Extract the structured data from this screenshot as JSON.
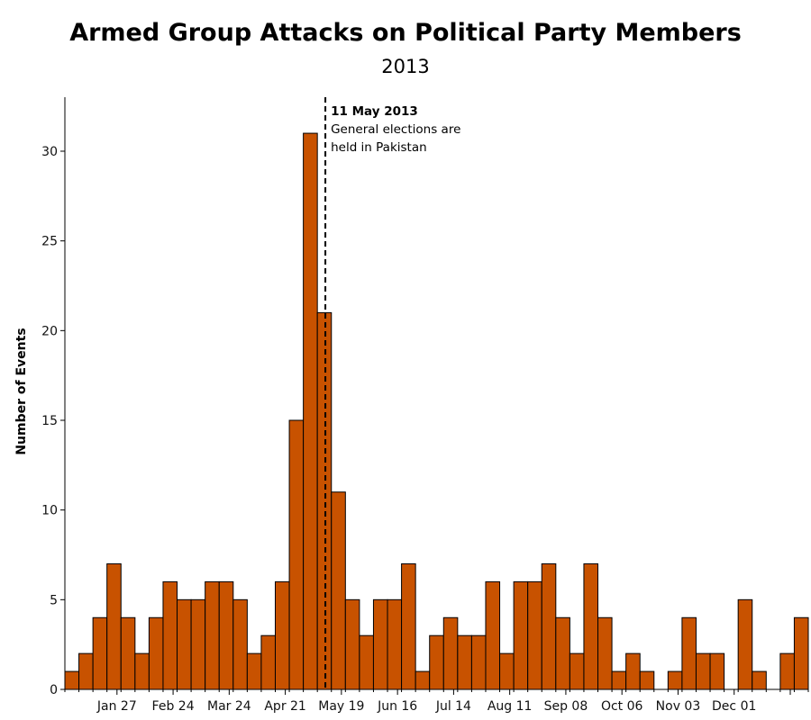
{
  "chart_data": {
    "type": "bar",
    "title": "Armed Group Attacks on Political Party Members",
    "subtitle": "2013",
    "xlabel": "",
    "ylabel": "Number of Events",
    "bin": "weekly",
    "x_start": "2013-01-01",
    "values": [
      1,
      2,
      4,
      7,
      4,
      2,
      4,
      6,
      5,
      5,
      6,
      6,
      5,
      2,
      3,
      6,
      15,
      31,
      21,
      11,
      5,
      3,
      5,
      5,
      7,
      1,
      3,
      4,
      3,
      3,
      6,
      2,
      6,
      6,
      7,
      4,
      2,
      7,
      4,
      1,
      2,
      1,
      0,
      1,
      4,
      2,
      2,
      0,
      5,
      1,
      0,
      2,
      4
    ],
    "ylim": [
      0,
      33
    ],
    "yticks": [
      0,
      5,
      10,
      15,
      20,
      25,
      30
    ],
    "xticks": [
      {
        "date": "2013-01-27",
        "label": "Jan 27"
      },
      {
        "date": "2013-02-24",
        "label": "Feb 24"
      },
      {
        "date": "2013-03-24",
        "label": "Mar 24"
      },
      {
        "date": "2013-04-21",
        "label": "Apr 21"
      },
      {
        "date": "2013-05-19",
        "label": "May 19"
      },
      {
        "date": "2013-06-16",
        "label": "Jun 16"
      },
      {
        "date": "2013-07-14",
        "label": "Jul 14"
      },
      {
        "date": "2013-08-11",
        "label": "Aug 11"
      },
      {
        "date": "2013-09-08",
        "label": "Sep 08"
      },
      {
        "date": "2013-10-06",
        "label": "Oct 06"
      },
      {
        "date": "2013-11-03",
        "label": "Nov 03"
      },
      {
        "date": "2013-12-01",
        "label": "Dec 01"
      },
      {
        "date": "2013-12-29",
        "label": ""
      }
    ],
    "bar_color": "#c85200",
    "grid": false,
    "annotation": {
      "date": "2013-05-11",
      "title": "11 May 2013",
      "lines": [
        "General elections are",
        "held in Pakistan"
      ]
    }
  }
}
